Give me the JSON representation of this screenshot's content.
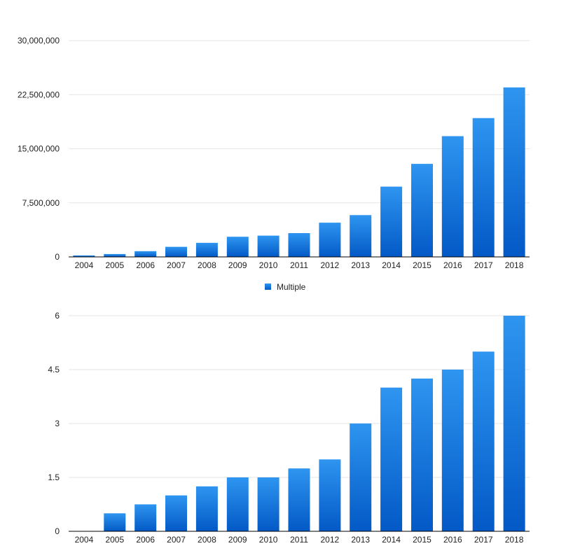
{
  "chart_data": [
    {
      "type": "bar",
      "categories": [
        "2004",
        "2005",
        "2006",
        "2007",
        "2008",
        "2009",
        "2010",
        "2011",
        "2012",
        "2013",
        "2014",
        "2015",
        "2016",
        "2017",
        "2018"
      ],
      "values": [
        200000,
        400000,
        800000,
        1400000,
        1950000,
        2800000,
        2950000,
        3300000,
        4750000,
        5800000,
        9750000,
        12900000,
        16750000,
        19250000,
        23500000
      ],
      "yticks": [
        "0",
        "7,500,000",
        "15,000,000",
        "22,500,000",
        "30,000,000"
      ],
      "ylim": [
        0,
        30000000
      ],
      "grid": true,
      "legend": {
        "labels": [
          "Multiple"
        ],
        "placement": "bottom"
      },
      "colors": {
        "bar_top": "#2e95f0",
        "bar_bottom": "#0359c6",
        "grid": "#e6e6e6",
        "axis": "#000000"
      }
    },
    {
      "type": "bar",
      "categories": [
        "2004",
        "2005",
        "2006",
        "2007",
        "2008",
        "2009",
        "2010",
        "2011",
        "2012",
        "2013",
        "2014",
        "2015",
        "2016",
        "2017",
        "2018"
      ],
      "values": [
        0,
        0.5,
        0.75,
        1.0,
        1.25,
        1.5,
        1.5,
        1.75,
        2.0,
        3.0,
        4.0,
        4.25,
        4.5,
        5.0,
        6.0
      ],
      "yticks": [
        "0",
        "1.5",
        "3",
        "4.5",
        "6"
      ],
      "ylim": [
        0,
        6
      ],
      "grid": true,
      "colors": {
        "bar_top": "#2e95f0",
        "bar_bottom": "#0359c6",
        "grid": "#e6e6e6",
        "axis": "#000000"
      }
    }
  ]
}
